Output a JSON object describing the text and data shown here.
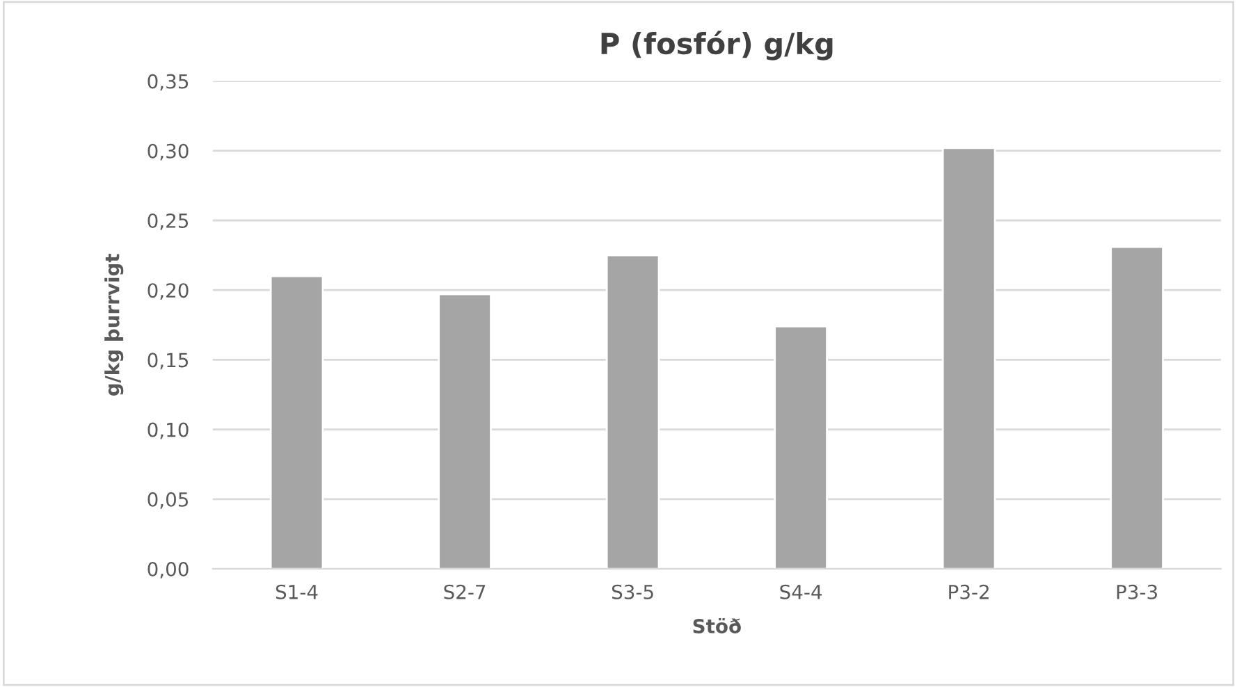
{
  "chart_data": {
    "type": "bar",
    "title": "P (fosfór) g/kg",
    "xlabel": "Stöð",
    "ylabel": "g/kg þurrvigt",
    "categories": [
      "S1-4",
      "S2-7",
      "S3-5",
      "S4-4",
      "P3-2",
      "P3-3"
    ],
    "values": [
      0.21,
      0.197,
      0.225,
      0.174,
      0.302,
      0.231
    ],
    "color": "#a5a5a5",
    "ylim": [
      0,
      0.35
    ],
    "yticks": [
      {
        "value": 0,
        "label": "0,00"
      },
      {
        "value": 0.05,
        "label": "0,05"
      },
      {
        "value": 0.1,
        "label": "0,10"
      },
      {
        "value": 0.15,
        "label": "0,15"
      },
      {
        "value": 0.2,
        "label": "0,20"
      },
      {
        "value": 0.25,
        "label": "0,25"
      },
      {
        "value": 0.3,
        "label": "0,30"
      },
      {
        "value": 0.35,
        "label": "0,35"
      }
    ],
    "grid": "y",
    "legend": false
  }
}
